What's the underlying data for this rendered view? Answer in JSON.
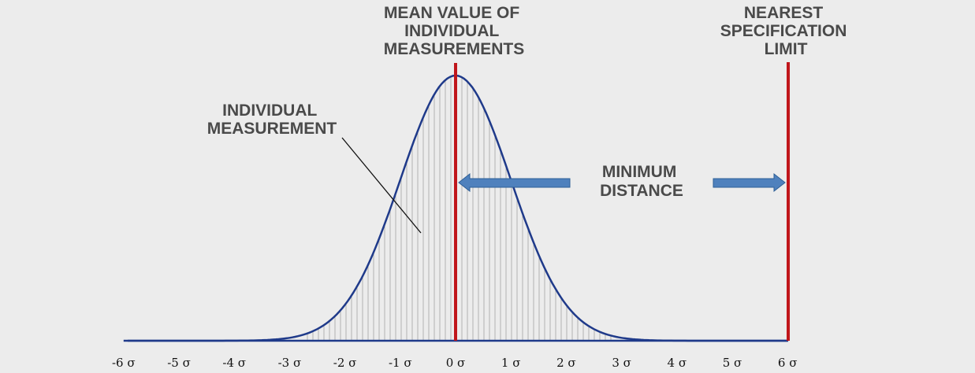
{
  "labels": {
    "mean": [
      "MEAN VALUE OF",
      "INDIVIDUAL",
      "MEASUREMENTS"
    ],
    "spec": [
      "NEAREST",
      "SPECIFICATION",
      "LIMIT"
    ],
    "individual": [
      "INDIVIDUAL",
      "MEASUREMENT"
    ],
    "distance": [
      "MINIMUM",
      "DISTANCE"
    ]
  },
  "axis_ticks": [
    "-6 σ",
    "-5 σ",
    "-4 σ",
    "-3 σ",
    "-2 σ",
    "-1 σ",
    "0 σ",
    "1 σ",
    "2 σ",
    "3 σ",
    "4 σ",
    "5 σ",
    "6 σ"
  ],
  "colors": {
    "curve": "#1f3a8a",
    "limit_line": "#c0161b",
    "arrow_fill": "#4f81bd",
    "arrow_stroke": "#2e5f96",
    "hatch": "#9a9a9a",
    "text": "#4a4a4a"
  }
}
